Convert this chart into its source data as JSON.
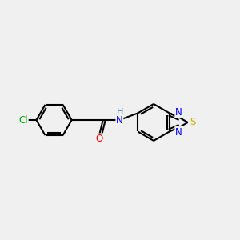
{
  "background_color": "#f0f0f0",
  "bond_color": "#000000",
  "atom_colors": {
    "Cl": "#00aa00",
    "O": "#ff0000",
    "N": "#0000ff",
    "S": "#ccaa00",
    "H": "#4488aa",
    "C": "#000000"
  },
  "font_size": 8.5,
  "lw": 1.5,
  "xlim": [
    0,
    10
  ],
  "ylim": [
    1,
    9
  ]
}
